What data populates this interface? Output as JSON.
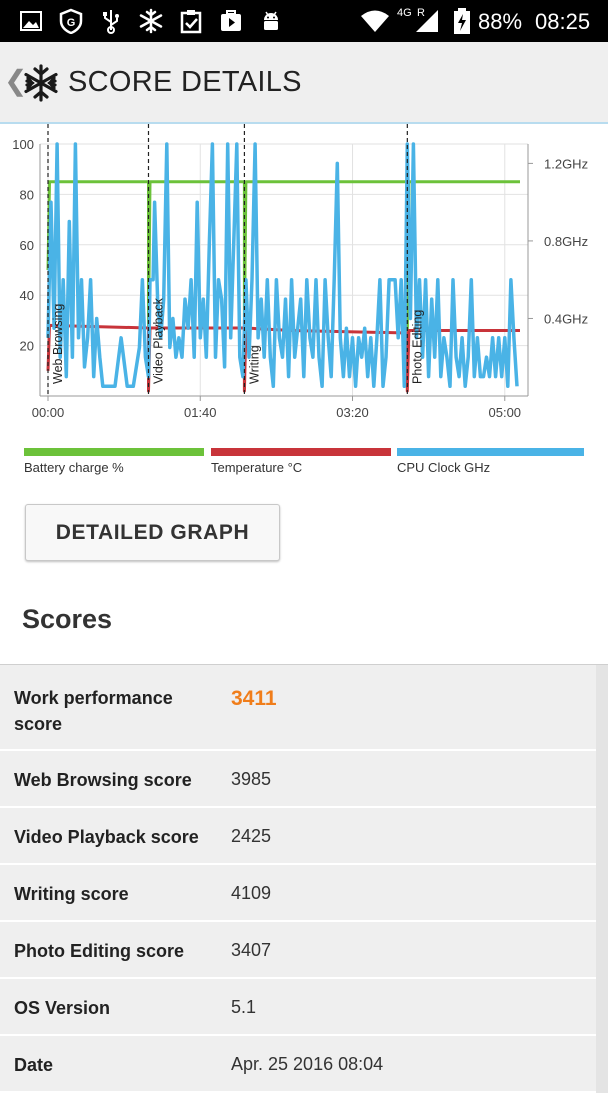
{
  "status_bar": {
    "network": "4G",
    "roaming": "R",
    "battery": "88%",
    "time": "08:25",
    "icons": [
      "image-icon",
      "shield-icon",
      "usb-icon",
      "snowflake-icon",
      "clipboard-check-icon",
      "play-store-icon",
      "android-icon",
      "wifi-icon",
      "signal-icon",
      "battery-icon"
    ]
  },
  "app_bar": {
    "back_icon": "chevron-left-icon",
    "logo_icon": "snowflake-icon",
    "title": "SCORE DETAILS"
  },
  "chart_data": {
    "type": "line",
    "x_ticks": [
      "00:00",
      "01:40",
      "03:20",
      "05:00"
    ],
    "x_range_seconds": [
      0,
      310
    ],
    "y_left_ticks": [
      "100",
      "80",
      "60",
      "40",
      "20"
    ],
    "y_left_range": [
      0,
      100
    ],
    "y_right_ticks": [
      "1.2GHz",
      "0.8GHz",
      "0.4GHz"
    ],
    "y_right_range_ghz": [
      0,
      1.3
    ],
    "grid": true,
    "segments": [
      {
        "label": "Web Browsing",
        "start": 0
      },
      {
        "label": "Video Playback",
        "start": 66
      },
      {
        "label": "Writing",
        "start": 129
      },
      {
        "label": "Photo Editing",
        "start": 236
      }
    ],
    "series": [
      {
        "name": "Battery charge %",
        "color": "#6cc23a",
        "axis": "left",
        "points": [
          [
            0,
            50
          ],
          [
            1,
            85
          ],
          [
            66,
            85
          ],
          [
            66,
            27
          ],
          [
            67,
            85
          ],
          [
            129,
            85
          ],
          [
            129,
            26
          ],
          [
            130,
            85
          ],
          [
            236,
            85
          ],
          [
            236,
            25
          ],
          [
            237,
            85
          ],
          [
            310,
            85
          ]
        ]
      },
      {
        "name": "Temperature °C",
        "color": "#c8343a",
        "axis": "left",
        "points": [
          [
            0,
            10
          ],
          [
            1,
            28
          ],
          [
            66,
            27
          ],
          [
            66,
            2
          ],
          [
            67,
            27
          ],
          [
            129,
            27
          ],
          [
            129,
            2
          ],
          [
            130,
            27
          ],
          [
            160,
            26
          ],
          [
            236,
            25
          ],
          [
            236,
            2
          ],
          [
            237,
            26
          ],
          [
            310,
            26
          ]
        ]
      },
      {
        "name": "CPU Clock GHz",
        "color": "#4ab3e6",
        "axis": "right",
        "points": [
          [
            0,
            0.3
          ],
          [
            2,
            1.0
          ],
          [
            4,
            0.35
          ],
          [
            6,
            1.3
          ],
          [
            8,
            0.2
          ],
          [
            10,
            0.6
          ],
          [
            12,
            0.1
          ],
          [
            14,
            0.9
          ],
          [
            16,
            0.2
          ],
          [
            18,
            1.3
          ],
          [
            20,
            0.3
          ],
          [
            22,
            0.6
          ],
          [
            24,
            0.15
          ],
          [
            26,
            0.3
          ],
          [
            28,
            0.6
          ],
          [
            30,
            0.1
          ],
          [
            32,
            0.4
          ],
          [
            34,
            0.2
          ],
          [
            36,
            0.05
          ],
          [
            40,
            0.05
          ],
          [
            44,
            0.05
          ],
          [
            48,
            0.3
          ],
          [
            52,
            0.05
          ],
          [
            56,
            0.05
          ],
          [
            60,
            0.25
          ],
          [
            62,
            0.6
          ],
          [
            64,
            0.2
          ],
          [
            66,
            0.1
          ],
          [
            67,
            0.6
          ],
          [
            69,
            0.6
          ],
          [
            70,
            1.0
          ],
          [
            72,
            0.5
          ],
          [
            74,
            0.3
          ],
          [
            76,
            0.5
          ],
          [
            78,
            1.3
          ],
          [
            80,
            0.25
          ],
          [
            82,
            0.4
          ],
          [
            84,
            0.2
          ],
          [
            86,
            0.3
          ],
          [
            88,
            0.2
          ],
          [
            90,
            0.5
          ],
          [
            92,
            0.35
          ],
          [
            94,
            0.6
          ],
          [
            96,
            0.2
          ],
          [
            98,
            1.0
          ],
          [
            100,
            0.3
          ],
          [
            102,
            0.5
          ],
          [
            104,
            0.2
          ],
          [
            106,
            0.8
          ],
          [
            108,
            1.3
          ],
          [
            110,
            0.2
          ],
          [
            112,
            0.6
          ],
          [
            114,
            0.5
          ],
          [
            116,
            0.15
          ],
          [
            118,
            1.3
          ],
          [
            120,
            0.3
          ],
          [
            122,
            0.8
          ],
          [
            124,
            1.3
          ],
          [
            126,
            0.2
          ],
          [
            128,
            0.1
          ],
          [
            130,
            0.6
          ],
          [
            132,
            0.2
          ],
          [
            134,
            0.6
          ],
          [
            136,
            1.3
          ],
          [
            138,
            0.3
          ],
          [
            140,
            0.5
          ],
          [
            142,
            0.2
          ],
          [
            144,
            0.6
          ],
          [
            146,
            0.2
          ],
          [
            148,
            0.05
          ],
          [
            150,
            0.6
          ],
          [
            152,
            0.3
          ],
          [
            154,
            0.2
          ],
          [
            156,
            0.5
          ],
          [
            158,
            0.1
          ],
          [
            160,
            0.6
          ],
          [
            162,
            0.2
          ],
          [
            164,
            0.35
          ],
          [
            166,
            0.5
          ],
          [
            168,
            0.1
          ],
          [
            170,
            0.6
          ],
          [
            172,
            0.3
          ],
          [
            174,
            0.2
          ],
          [
            176,
            0.6
          ],
          [
            178,
            0.2
          ],
          [
            180,
            0.05
          ],
          [
            182,
            0.6
          ],
          [
            184,
            0.3
          ],
          [
            186,
            0.1
          ],
          [
            188,
            0.6
          ],
          [
            190,
            1.2
          ],
          [
            192,
            0.3
          ],
          [
            194,
            0.1
          ],
          [
            196,
            0.35
          ],
          [
            198,
            0.1
          ],
          [
            200,
            0.3
          ],
          [
            202,
            0.05
          ],
          [
            204,
            0.3
          ],
          [
            206,
            0.2
          ],
          [
            208,
            0.35
          ],
          [
            210,
            0.1
          ],
          [
            212,
            0.3
          ],
          [
            214,
            0.05
          ],
          [
            216,
            0.3
          ],
          [
            218,
            0.6
          ],
          [
            220,
            0.05
          ],
          [
            222,
            0.2
          ],
          [
            224,
            0.6
          ],
          [
            226,
            0.6
          ],
          [
            228,
            0.6
          ],
          [
            230,
            0.3
          ],
          [
            232,
            0.6
          ],
          [
            234,
            0.05
          ],
          [
            236,
            1.3
          ],
          [
            238,
            0.4
          ],
          [
            240,
            1.3
          ],
          [
            242,
            0.3
          ],
          [
            244,
            0.6
          ],
          [
            246,
            0.2
          ],
          [
            248,
            0.6
          ],
          [
            250,
            0.1
          ],
          [
            252,
            0.5
          ],
          [
            254,
            0.2
          ],
          [
            256,
            0.6
          ],
          [
            258,
            0.1
          ],
          [
            260,
            0.3
          ],
          [
            262,
            0.2
          ],
          [
            264,
            0.05
          ],
          [
            266,
            0.6
          ],
          [
            268,
            0.2
          ],
          [
            270,
            0.1
          ],
          [
            272,
            0.3
          ],
          [
            274,
            0.05
          ],
          [
            276,
            0.2
          ],
          [
            278,
            0.6
          ],
          [
            280,
            0.1
          ],
          [
            282,
            0.3
          ],
          [
            284,
            0.1
          ],
          [
            286,
            0.1
          ],
          [
            288,
            0.2
          ],
          [
            290,
            0.1
          ],
          [
            292,
            0.3
          ],
          [
            294,
            0.1
          ],
          [
            296,
            0.3
          ],
          [
            298,
            0.1
          ],
          [
            300,
            0.3
          ],
          [
            302,
            0.05
          ],
          [
            304,
            0.6
          ],
          [
            306,
            0.3
          ],
          [
            308,
            0.05
          ]
        ]
      }
    ]
  },
  "legend": [
    {
      "label": "Battery charge %",
      "color": "#6cc23a"
    },
    {
      "label": "Temperature °C",
      "color": "#c8343a"
    },
    {
      "label": "CPU Clock GHz",
      "color": "#4ab3e6"
    }
  ],
  "detailed_graph_button": "DETAILED GRAPH",
  "scores_heading": "Scores",
  "scores": [
    {
      "label": "Work performance score",
      "value": "3411",
      "accent": true
    },
    {
      "label": "Web Browsing score",
      "value": "3985"
    },
    {
      "label": "Video Playback score",
      "value": "2425"
    },
    {
      "label": "Writing score",
      "value": "4109"
    },
    {
      "label": "Photo Editing score",
      "value": "3407"
    },
    {
      "label": "OS Version",
      "value": "5.1"
    },
    {
      "label": "Date",
      "value": "Apr. 25 2016 08:04"
    }
  ],
  "colors": {
    "accent": "#f07d1a",
    "divider": "#b8dcef"
  }
}
